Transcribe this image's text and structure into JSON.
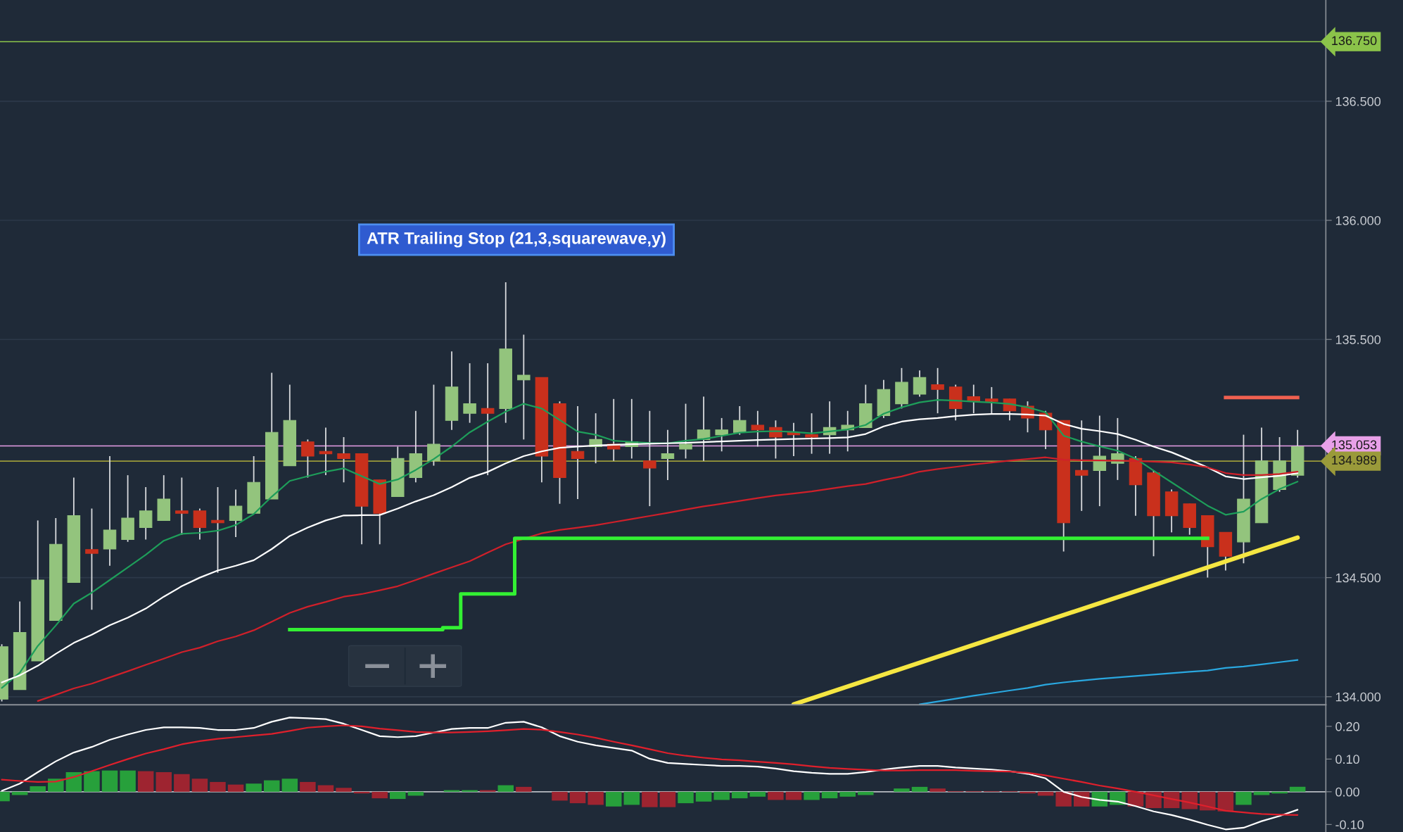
{
  "chart_data": [
    {
      "type": "candlestick",
      "categories": [
        null,
        null,
        null,
        null,
        null,
        null,
        null,
        null,
        null,
        null,
        null,
        null,
        null,
        null,
        null,
        null,
        null,
        null,
        null,
        null,
        null,
        null,
        null,
        null,
        null,
        null,
        null,
        null,
        null,
        null,
        null,
        null,
        null,
        null,
        null,
        null,
        null,
        null,
        null,
        null,
        null,
        null,
        null,
        null,
        null,
        null,
        null,
        null,
        null,
        null,
        null,
        null,
        null,
        null,
        null,
        null,
        null,
        null,
        null,
        null,
        null,
        null,
        null,
        null,
        null,
        null,
        null,
        null,
        null,
        null,
        null,
        null,
        null
      ],
      "ohlc": [
        [
          133.99,
          134.22,
          133.98,
          134.21
        ],
        [
          134.03,
          134.4,
          134.03,
          134.27
        ],
        [
          134.15,
          134.74,
          134.15,
          134.49
        ],
        [
          134.32,
          134.75,
          134.32,
          134.64
        ],
        [
          134.48,
          134.92,
          134.48,
          134.76
        ],
        [
          134.618,
          134.79,
          134.365,
          134.602
        ],
        [
          134.62,
          135.01,
          134.55,
          134.7
        ],
        [
          134.66,
          134.93,
          134.65,
          134.75
        ],
        [
          134.71,
          134.88,
          134.66,
          134.78
        ],
        [
          134.74,
          134.93,
          134.74,
          134.83
        ],
        [
          134.78,
          134.92,
          134.68,
          134.77
        ],
        [
          134.78,
          134.79,
          134.66,
          134.71
        ],
        [
          134.74,
          134.88,
          134.52,
          134.73
        ],
        [
          134.74,
          134.87,
          134.67,
          134.8
        ],
        [
          134.77,
          135.01,
          134.77,
          134.9
        ],
        [
          134.83,
          135.36,
          134.83,
          135.11
        ],
        [
          134.97,
          135.31,
          134.97,
          135.16
        ],
        [
          135.07,
          135.08,
          134.92,
          135.01
        ],
        [
          135.03,
          135.13,
          134.93,
          135.02
        ],
        [
          135.02,
          135.09,
          134.9,
          135.0
        ],
        [
          135.02,
          135.02,
          134.64,
          134.8
        ],
        [
          134.91,
          134.91,
          134.64,
          134.77
        ],
        [
          134.84,
          135.05,
          134.84,
          135.0
        ],
        [
          134.92,
          135.2,
          134.9,
          135.02
        ],
        [
          134.99,
          135.31,
          134.97,
          135.06
        ],
        [
          135.16,
          135.45,
          135.12,
          135.3
        ],
        [
          135.19,
          135.4,
          135.15,
          135.23
        ],
        [
          135.21,
          135.4,
          134.93,
          135.19
        ],
        [
          135.21,
          135.74,
          135.15,
          135.46
        ],
        [
          135.33,
          135.52,
          135.08,
          135.35
        ],
        [
          135.34,
          135.34,
          134.9,
          135.01
        ],
        [
          135.23,
          135.24,
          134.81,
          134.92
        ],
        [
          135.03,
          135.22,
          134.83,
          135.0
        ],
        [
          135.05,
          135.19,
          134.98,
          135.08
        ],
        [
          135.06,
          135.25,
          134.99,
          135.04
        ],
        [
          135.05,
          135.25,
          135.0,
          135.07
        ],
        [
          134.99,
          135.2,
          134.8,
          134.96
        ],
        [
          135.0,
          135.12,
          134.91,
          135.02
        ],
        [
          135.04,
          135.23,
          135.0,
          135.06
        ],
        [
          135.08,
          135.26,
          134.99,
          135.12
        ],
        [
          135.1,
          135.17,
          135.03,
          135.12
        ],
        [
          135.11,
          135.22,
          135.1,
          135.16
        ],
        [
          135.14,
          135.2,
          135.05,
          135.12
        ],
        [
          135.13,
          135.16,
          135.0,
          135.09
        ],
        [
          135.11,
          135.15,
          135.01,
          135.1
        ],
        [
          135.1,
          135.19,
          135.02,
          135.09
        ],
        [
          135.1,
          135.24,
          135.02,
          135.13
        ],
        [
          135.12,
          135.2,
          135.03,
          135.14
        ],
        [
          135.13,
          135.31,
          135.13,
          135.23
        ],
        [
          135.18,
          135.33,
          135.17,
          135.29
        ],
        [
          135.23,
          135.38,
          135.21,
          135.32
        ],
        [
          135.27,
          135.37,
          135.26,
          135.34
        ],
        [
          135.31,
          135.38,
          135.19,
          135.29
        ],
        [
          135.3,
          135.31,
          135.16,
          135.21
        ],
        [
          135.26,
          135.31,
          135.19,
          135.24
        ],
        [
          135.25,
          135.3,
          135.19,
          135.24
        ],
        [
          135.25,
          135.25,
          135.16,
          135.2
        ],
        [
          135.22,
          135.24,
          135.11,
          135.17
        ],
        [
          135.19,
          135.2,
          135.04,
          135.12
        ],
        [
          135.16,
          135.16,
          134.61,
          134.73
        ],
        [
          134.95,
          135.16,
          134.78,
          134.93
        ],
        [
          134.95,
          135.18,
          134.8,
          135.01
        ],
        [
          134.98,
          135.17,
          134.91,
          135.02
        ],
        [
          135.0,
          135.01,
          134.76,
          134.89
        ],
        [
          134.94,
          134.95,
          134.59,
          134.76
        ],
        [
          134.86,
          134.87,
          134.69,
          134.76
        ],
        [
          134.81,
          134.81,
          134.68,
          134.71
        ],
        [
          134.76,
          134.76,
          134.5,
          134.63
        ],
        [
          134.69,
          134.69,
          134.53,
          134.59
        ],
        [
          134.65,
          135.1,
          134.56,
          134.83
        ],
        [
          134.73,
          135.13,
          134.73,
          134.99
        ],
        [
          134.87,
          135.09,
          134.86,
          134.99
        ],
        [
          134.93,
          135.12,
          134.92,
          135.05
        ]
      ],
      "series": [
        {
          "type": "line",
          "color": "#1e9e5a",
          "values": [
            134.037,
            134.101,
            134.213,
            134.299,
            134.391,
            134.437,
            134.49,
            134.543,
            134.596,
            134.655,
            134.684,
            134.688,
            134.697,
            134.721,
            134.767,
            134.84,
            134.906,
            134.926,
            134.945,
            134.959,
            134.926,
            134.893,
            134.912,
            134.952,
            134.998,
            135.05,
            135.11,
            135.155,
            135.197,
            135.23,
            135.21,
            135.162,
            135.113,
            135.1,
            135.075,
            135.07,
            135.065,
            135.064,
            135.075,
            135.082,
            135.095,
            135.109,
            135.113,
            135.115,
            135.112,
            135.106,
            135.114,
            135.122,
            135.141,
            135.188,
            135.215,
            135.236,
            135.246,
            135.243,
            135.239,
            135.235,
            135.229,
            135.215,
            135.194,
            135.096,
            135.071,
            135.051,
            135.033,
            135.0,
            134.949,
            134.9,
            134.851,
            134.802,
            134.764,
            134.777,
            134.83,
            134.872,
            134.903
          ]
        },
        {
          "type": "line",
          "color": "#ffffff",
          "values": [
            134.06,
            134.09,
            134.13,
            134.18,
            134.226,
            134.26,
            134.3,
            134.332,
            134.37,
            134.42,
            134.464,
            134.5,
            134.53,
            134.55,
            134.573,
            134.62,
            134.675,
            134.71,
            134.74,
            134.761,
            134.762,
            134.763,
            134.79,
            134.82,
            134.846,
            134.88,
            134.919,
            134.944,
            134.98,
            135.01,
            135.03,
            135.045,
            135.05,
            135.055,
            135.058,
            135.06,
            135.062,
            135.064,
            135.066,
            135.069,
            135.072,
            135.075,
            135.078,
            135.08,
            135.082,
            135.084,
            135.086,
            135.089,
            135.103,
            135.135,
            135.155,
            135.165,
            135.17,
            135.178,
            135.184,
            135.187,
            135.187,
            135.185,
            135.18,
            135.145,
            135.125,
            135.115,
            135.103,
            135.079,
            135.05,
            135.026,
            134.995,
            134.963,
            134.925,
            134.914,
            134.921,
            134.928,
            134.939
          ]
        },
        {
          "type": "line",
          "color": "#d0202a",
          "values": [
            null,
            null,
            133.982,
            134.008,
            134.035,
            134.055,
            134.081,
            134.107,
            134.134,
            134.16,
            134.187,
            134.206,
            134.233,
            134.253,
            134.279,
            134.315,
            134.352,
            134.378,
            134.398,
            134.42,
            134.431,
            134.447,
            134.464,
            134.49,
            134.517,
            134.543,
            134.569,
            134.605,
            134.64,
            134.663,
            134.686,
            134.7,
            134.71,
            134.72,
            134.733,
            134.746,
            134.759,
            134.772,
            134.786,
            134.799,
            134.81,
            134.822,
            134.834,
            134.845,
            134.853,
            134.862,
            134.873,
            134.884,
            134.893,
            134.91,
            134.925,
            134.945,
            134.956,
            134.965,
            134.975,
            134.983,
            134.991,
            134.998,
            135.005,
            134.995,
            134.993,
            134.992,
            134.991,
            134.99,
            134.987,
            134.984,
            134.975,
            134.963,
            134.939,
            134.931,
            134.931,
            134.935,
            134.945
          ]
        },
        {
          "type": "line",
          "color": "#2aa8e0",
          "values": [
            null,
            null,
            null,
            null,
            null,
            null,
            null,
            null,
            null,
            null,
            null,
            null,
            null,
            null,
            null,
            null,
            null,
            null,
            null,
            null,
            null,
            null,
            null,
            null,
            null,
            null,
            null,
            null,
            null,
            null,
            null,
            null,
            null,
            null,
            null,
            null,
            null,
            null,
            null,
            null,
            null,
            null,
            null,
            null,
            null,
            null,
            null,
            null,
            null,
            null,
            null,
            133.968,
            133.98,
            133.992,
            134.004,
            134.015,
            134.026,
            134.037,
            134.051,
            134.06,
            134.068,
            134.075,
            134.081,
            134.087,
            134.093,
            134.099,
            134.105,
            134.11,
            134.121,
            134.127,
            134.136,
            134.145,
            134.154
          ]
        },
        {
          "type": "line",
          "color": "#f5e642",
          "values": [
            null,
            null,
            null,
            null,
            null,
            null,
            null,
            null,
            null,
            null,
            null,
            null,
            null,
            null,
            null,
            null,
            null,
            null,
            null,
            null,
            null,
            null,
            null,
            null,
            null,
            null,
            null,
            null,
            null,
            null,
            null,
            null,
            null,
            null,
            null,
            null,
            null,
            null,
            null,
            null,
            null,
            null,
            null,
            null,
            133.968,
            null,
            null,
            null,
            null,
            null,
            null,
            null,
            null,
            null,
            null,
            null,
            null,
            null,
            null,
            null,
            null,
            null,
            null,
            null,
            null,
            null,
            null,
            null,
            null,
            null,
            null,
            null,
            134.668
          ]
        },
        {
          "type": "step",
          "color": "#33f033",
          "values": [
            null,
            null,
            null,
            null,
            null,
            null,
            null,
            null,
            null,
            null,
            null,
            null,
            null,
            null,
            null,
            null,
            134.282,
            134.282,
            134.282,
            134.282,
            134.282,
            134.282,
            134.282,
            134.282,
            134.282,
            134.29,
            134.432,
            134.432,
            134.432,
            134.665,
            134.665,
            134.665,
            134.665,
            134.665,
            134.665,
            134.665,
            134.665,
            134.665,
            134.665,
            134.665,
            134.665,
            134.665,
            134.665,
            134.665,
            134.665,
            134.665,
            134.665,
            134.665,
            134.665,
            134.665,
            134.665,
            134.665,
            134.665,
            134.665,
            134.665,
            134.665,
            134.665,
            134.665,
            134.665,
            134.665,
            134.665,
            134.665,
            134.665,
            134.665,
            134.665,
            134.665,
            134.665,
            134.665,
            null,
            null,
            null,
            null,
            null
          ]
        },
        {
          "type": "step",
          "color": "#f06050",
          "values": [
            null,
            null,
            null,
            null,
            null,
            null,
            null,
            null,
            null,
            null,
            null,
            null,
            null,
            null,
            null,
            null,
            null,
            null,
            null,
            null,
            null,
            null,
            null,
            null,
            null,
            null,
            null,
            null,
            null,
            null,
            null,
            null,
            null,
            null,
            null,
            null,
            null,
            null,
            null,
            null,
            null,
            null,
            null,
            null,
            null,
            null,
            null,
            null,
            null,
            null,
            null,
            null,
            null,
            null,
            null,
            null,
            null,
            null,
            null,
            null,
            null,
            null,
            null,
            null,
            null,
            null,
            null,
            null,
            135.256,
            135.256,
            135.256,
            135.256,
            135.256
          ]
        }
      ],
      "ylim": [
        133.966,
        136.925
      ],
      "yticks": [
        {
          "value": 134.0,
          "label": "134.000"
        },
        {
          "value": 134.5,
          "label": "134.500"
        },
        {
          "value": 135.5,
          "label": "135.500"
        },
        {
          "value": 136.0,
          "label": "136.000"
        },
        {
          "value": 136.5,
          "label": "136.500"
        }
      ],
      "grid": "y",
      "tick_labels": "y",
      "ref_lines": [
        {
          "axis": "y",
          "value": 136.75,
          "label": "136.750",
          "color": "#8bc34a"
        },
        {
          "axis": "y",
          "value": 135.053,
          "label": "135.053",
          "color": "#e8a0e8"
        },
        {
          "axis": "y",
          "value": 134.989,
          "label": "134.989",
          "color": "#9a9a3a"
        }
      ],
      "annotations": [
        "ATR Trailing Stop (21,3,squarewave,y)"
      ]
    },
    {
      "type": "bar",
      "categories": [
        null,
        null,
        null,
        null,
        null,
        null,
        null,
        null,
        null,
        null,
        null,
        null,
        null,
        null,
        null,
        null,
        null,
        null,
        null,
        null,
        null,
        null,
        null,
        null,
        null,
        null,
        null,
        null,
        null,
        null,
        null,
        null,
        null,
        null,
        null,
        null,
        null,
        null,
        null,
        null,
        null,
        null,
        null,
        null,
        null,
        null,
        null,
        null,
        null,
        null,
        null,
        null,
        null,
        null,
        null,
        null,
        null,
        null,
        null,
        null,
        null,
        null,
        null,
        null,
        null,
        null,
        null,
        null,
        null,
        null,
        null,
        null,
        null
      ],
      "series": [
        {
          "type": "bar",
          "values": [
            -0.029,
            -0.01,
            0.017,
            0.04,
            0.06,
            0.063,
            0.065,
            0.065,
            0.063,
            0.06,
            0.054,
            0.04,
            0.03,
            0.022,
            0.025,
            0.035,
            0.04,
            0.03,
            0.02,
            0.012,
            -0.005,
            -0.02,
            -0.022,
            -0.012,
            0.0,
            0.005,
            0.005,
            0.005,
            0.02,
            0.015,
            0.0,
            -0.027,
            -0.035,
            -0.04,
            -0.045,
            -0.04,
            -0.047,
            -0.047,
            -0.035,
            -0.03,
            -0.025,
            -0.02,
            -0.015,
            -0.025,
            -0.025,
            -0.025,
            -0.02,
            -0.015,
            -0.01,
            0.0,
            0.01,
            0.015,
            0.01,
            0.002,
            0.002,
            0.002,
            0.002,
            -0.005,
            -0.012,
            -0.045,
            -0.045,
            -0.045,
            -0.04,
            -0.045,
            -0.05,
            -0.05,
            -0.053,
            -0.057,
            -0.06,
            -0.04,
            -0.01,
            -0.005,
            0.015
          ],
          "colors": [
            "#27a03b",
            "#27a03b",
            "#27a03b",
            "#27a03b",
            "#27a03b",
            "#27a03b",
            "#27a03b",
            "#27a03b",
            "#9e2430",
            "#9e2430",
            "#9e2430",
            "#9e2430",
            "#9e2430",
            "#9e2430",
            "#27a03b",
            "#27a03b",
            "#27a03b",
            "#9e2430",
            "#9e2430",
            "#9e2430",
            "#9e2430",
            "#9e2430",
            "#27a03b",
            "#27a03b",
            "#27a03b",
            "#27a03b",
            "#27a03b",
            "#9e2430",
            "#27a03b",
            "#9e2430",
            "#9e2430",
            "#9e2430",
            "#9e2430",
            "#9e2430",
            "#27a03b",
            "#27a03b",
            "#9e2430",
            "#9e2430",
            "#27a03b",
            "#27a03b",
            "#27a03b",
            "#27a03b",
            "#27a03b",
            "#9e2430",
            "#9e2430",
            "#27a03b",
            "#27a03b",
            "#27a03b",
            "#27a03b",
            "#27a03b",
            "#27a03b",
            "#27a03b",
            "#9e2430",
            "#9e2430",
            "#9e2430",
            "#9e2430",
            "#9e2430",
            "#9e2430",
            "#9e2430",
            "#9e2430",
            "#9e2430",
            "#27a03b",
            "#27a03b",
            "#9e2430",
            "#9e2430",
            "#9e2430",
            "#9e2430",
            "#9e2430",
            "#9e2430",
            "#27a03b",
            "#27a03b",
            "#27a03b",
            "#27a03b"
          ]
        },
        {
          "type": "line",
          "color": "#ffffff",
          "values": [
            0.003,
            0.025,
            0.06,
            0.093,
            0.12,
            0.137,
            0.159,
            0.175,
            0.189,
            0.197,
            0.197,
            0.195,
            0.189,
            0.189,
            0.195,
            0.214,
            0.227,
            0.225,
            0.222,
            0.208,
            0.189,
            0.17,
            0.167,
            0.17,
            0.181,
            0.192,
            0.195,
            0.195,
            0.211,
            0.214,
            0.197,
            0.17,
            0.153,
            0.142,
            0.134,
            0.126,
            0.101,
            0.088,
            0.085,
            0.082,
            0.079,
            0.079,
            0.077,
            0.071,
            0.063,
            0.058,
            0.055,
            0.055,
            0.06,
            0.068,
            0.074,
            0.079,
            0.079,
            0.074,
            0.071,
            0.068,
            0.063,
            0.055,
            0.041,
            0.0,
            -0.016,
            -0.025,
            -0.03,
            -0.044,
            -0.06,
            -0.071,
            -0.085,
            -0.101,
            -0.115,
            -0.11,
            -0.09,
            -0.074,
            -0.055
          ]
        },
        {
          "type": "line",
          "color": "#e0202c",
          "values": [
            0.037,
            0.033,
            0.03,
            0.031,
            0.045,
            0.063,
            0.082,
            0.1,
            0.117,
            0.13,
            0.145,
            0.155,
            0.162,
            0.167,
            0.172,
            0.177,
            0.186,
            0.196,
            0.2,
            0.203,
            0.2,
            0.193,
            0.188,
            0.183,
            0.181,
            0.181,
            0.183,
            0.185,
            0.188,
            0.192,
            0.19,
            0.183,
            0.175,
            0.165,
            0.153,
            0.142,
            0.13,
            0.118,
            0.11,
            0.104,
            0.099,
            0.096,
            0.092,
            0.088,
            0.084,
            0.078,
            0.073,
            0.07,
            0.067,
            0.065,
            0.065,
            0.066,
            0.066,
            0.066,
            0.064,
            0.063,
            0.062,
            0.058,
            0.05,
            0.04,
            0.03,
            0.019,
            0.01,
            0.0,
            -0.011,
            -0.022,
            -0.033,
            -0.045,
            -0.058,
            -0.063,
            -0.068,
            -0.07,
            -0.071
          ]
        }
      ],
      "ylim": [
        -0.123,
        0.2658
      ],
      "yticks": [
        {
          "value": 0.2,
          "label": "0.20"
        },
        {
          "value": 0.1,
          "label": "0.10"
        },
        {
          "value": 0.0,
          "label": "0.00"
        },
        {
          "value": -0.1,
          "label": "-0.10"
        }
      ],
      "tick_labels": "y",
      "ref_lines": [
        {
          "axis": "y",
          "value": 0.0,
          "color": "#b8bcc2"
        }
      ]
    }
  ]
}
